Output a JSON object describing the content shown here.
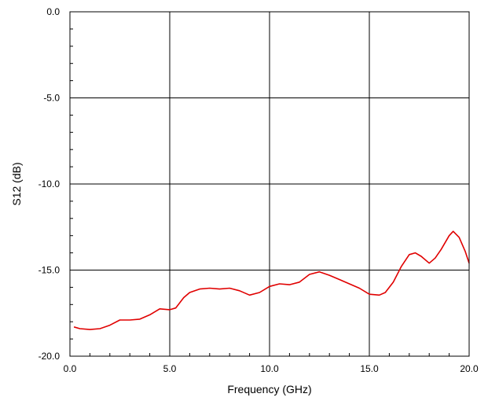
{
  "chart_data": {
    "type": "line",
    "title": "",
    "xlabel": "Frequency (GHz)",
    "ylabel": "S12 (dB)",
    "xlim": [
      0,
      20
    ],
    "ylim": [
      -20,
      0
    ],
    "x_ticks": [
      0,
      5,
      10,
      15,
      20
    ],
    "x_tick_labels": [
      "0.0",
      "5.0",
      "10.0",
      "15.0",
      "20.0"
    ],
    "y_ticks": [
      0,
      -5,
      -10,
      -15,
      -20
    ],
    "y_tick_labels": [
      "0.0",
      "-5.0",
      "-10.0",
      "-15.0",
      "-20.0"
    ],
    "grid": true,
    "legend": "none",
    "series": [
      {
        "color": "#e00000",
        "x": [
          0.2,
          0.5,
          1.0,
          1.5,
          2.0,
          2.5,
          3.0,
          3.5,
          4.0,
          4.5,
          5.0,
          5.3,
          5.7,
          6.0,
          6.5,
          7.0,
          7.5,
          8.0,
          8.5,
          9.0,
          9.5,
          10.0,
          10.5,
          11.0,
          11.5,
          12.0,
          12.5,
          13.0,
          13.5,
          14.0,
          14.5,
          15.0,
          15.5,
          15.8,
          16.2,
          16.6,
          17.0,
          17.3,
          17.6,
          18.0,
          18.3,
          18.6,
          19.0,
          19.2,
          19.5,
          19.8,
          20.0
        ],
        "y": [
          -18.3,
          -18.4,
          -18.45,
          -18.4,
          -18.2,
          -17.9,
          -17.9,
          -17.85,
          -17.6,
          -17.25,
          -17.3,
          -17.2,
          -16.6,
          -16.3,
          -16.1,
          -16.05,
          -16.1,
          -16.05,
          -16.2,
          -16.45,
          -16.3,
          -15.95,
          -15.8,
          -15.85,
          -15.7,
          -15.25,
          -15.1,
          -15.3,
          -15.55,
          -15.8,
          -16.05,
          -16.4,
          -16.45,
          -16.3,
          -15.7,
          -14.8,
          -14.1,
          -14.0,
          -14.2,
          -14.6,
          -14.3,
          -13.8,
          -13.0,
          -12.75,
          -13.1,
          -13.9,
          -14.6
        ]
      }
    ]
  }
}
